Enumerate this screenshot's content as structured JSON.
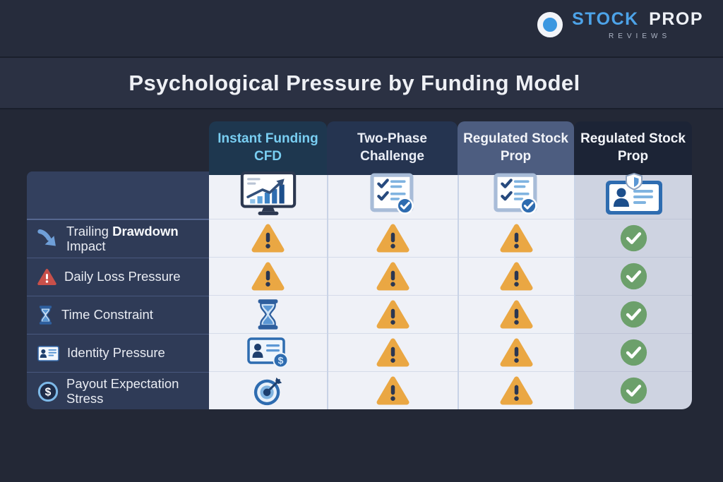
{
  "logo": {
    "part1": "STOCK",
    "part2": "PROP",
    "subtitle": "REVIEWS"
  },
  "title": "Psychological Pressure by Funding Model",
  "table": {
    "columns": [
      {
        "label": "Instant Funding CFD",
        "icon": "monitor-chart-icon"
      },
      {
        "label": "Two-Phase Challenge",
        "icon": "checklist-icon"
      },
      {
        "label": "Regulated Stock Prop",
        "icon": "checklist-icon"
      },
      {
        "label": "Regulated Stock Prop",
        "icon": "idcard-shield-icon"
      }
    ],
    "rows": [
      {
        "label": "Trailing Drawdown Impact",
        "bold_part": "Drawdown",
        "icon": "arrow-down-right",
        "cells": [
          "warning",
          "warning",
          "warning",
          "check"
        ]
      },
      {
        "label": "Daily Loss Pressure",
        "icon": "red-alert",
        "cells": [
          "warning",
          "warning",
          "warning",
          "check"
        ]
      },
      {
        "label": "Time Constraint",
        "icon": "hourglass",
        "cells": [
          "hourglass",
          "warning",
          "warning",
          "check"
        ]
      },
      {
        "label": "Identity Pressure",
        "icon": "idcard",
        "cells": [
          "idcard-dollar",
          "warning",
          "warning",
          "check"
        ]
      },
      {
        "label": "Payout Expectation Stress",
        "icon": "dollar-circle",
        "cells": [
          "target",
          "warning",
          "warning",
          "check"
        ]
      }
    ]
  },
  "colors": {
    "accent_blue": "#4da3e8",
    "warning_amber": "#eaa743",
    "success_green": "#6ca06b",
    "danger_red": "#c8504a",
    "header_instant": "#1e374f",
    "header_two_phase": "#253450",
    "header_regulated_light": "#4d5d80",
    "header_regulated_dark": "#1c2436",
    "label_column": "#2f3b57",
    "body_light": "#eff1f7",
    "body_lavender": "#ced3e1"
  }
}
